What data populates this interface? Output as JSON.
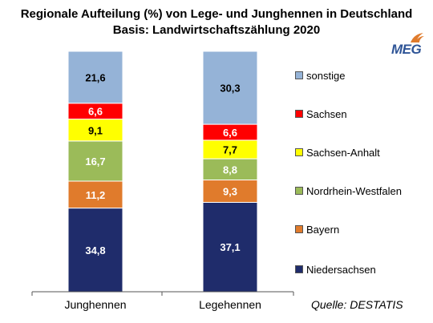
{
  "title_line1": "Regionale Aufteilung (%) von Lege- und Junghennen in Deutschland",
  "title_line2": "Basis: Landwirtschaftszählung 2020",
  "logo_text": "MEG",
  "source": "Quelle: DESTATIS",
  "chart_data": {
    "type": "bar",
    "stacked": true,
    "percent_stacked": true,
    "categories": [
      "Junghennen",
      "Legehennen"
    ],
    "series": [
      {
        "name": "Niedersachsen",
        "color": "#1f2c6b",
        "label_color": "#ffffff",
        "values": [
          34.8,
          37.1
        ],
        "labels": [
          "34,8",
          "37,1"
        ]
      },
      {
        "name": "Bayern",
        "color": "#e07b2c",
        "label_color": "#ffffff",
        "values": [
          11.2,
          9.3
        ],
        "labels": [
          "11,2",
          "9,3"
        ]
      },
      {
        "name": "Nordrhein-Westfalen",
        "color": "#9bbb59",
        "label_color": "#ffffff",
        "values": [
          16.7,
          8.8
        ],
        "labels": [
          "16,7",
          "8,8"
        ]
      },
      {
        "name": "Sachsen-Anhalt",
        "color": "#ffff00",
        "label_color": "#000000",
        "values": [
          9.1,
          7.7
        ],
        "labels": [
          "9,1",
          "7,7"
        ]
      },
      {
        "name": "Sachsen",
        "color": "#ff0000",
        "label_color": "#ffffff",
        "values": [
          6.6,
          6.6
        ],
        "labels": [
          "6,6",
          "6,6"
        ]
      },
      {
        "name": "sonstige",
        "color": "#95b3d7",
        "label_color": "#000000",
        "values": [
          21.6,
          30.3
        ],
        "labels": [
          "21,6",
          "30,3"
        ]
      }
    ],
    "ylim": [
      0,
      100
    ],
    "legend_position": "right",
    "grid": false
  }
}
